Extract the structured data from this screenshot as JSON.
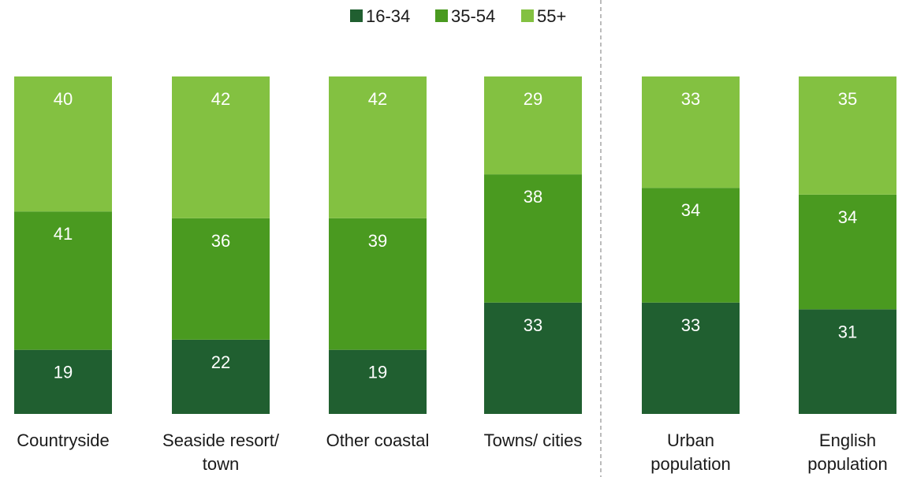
{
  "chart_data": {
    "type": "bar",
    "stacked": true,
    "orientation": "vertical",
    "categories": [
      [
        "Countryside"
      ],
      [
        "Seaside resort/",
        "town"
      ],
      [
        "Other coastal"
      ],
      [
        "Towns/ cities"
      ],
      [
        "Urban",
        "population"
      ],
      [
        "English",
        "population"
      ]
    ],
    "series": [
      {
        "name": "16-34",
        "color": "#205f30",
        "values": [
          19,
          22,
          19,
          33,
          33,
          31
        ]
      },
      {
        "name": "35-54",
        "color": "#4a9a20",
        "values": [
          41,
          36,
          39,
          38,
          34,
          34
        ]
      },
      {
        "name": "55+",
        "color": "#83c141",
        "values": [
          40,
          42,
          42,
          29,
          33,
          35
        ]
      }
    ],
    "ylim": [
      0,
      100
    ],
    "grid": false,
    "legend_position": "top-center",
    "separator_after_category_index": 3
  }
}
